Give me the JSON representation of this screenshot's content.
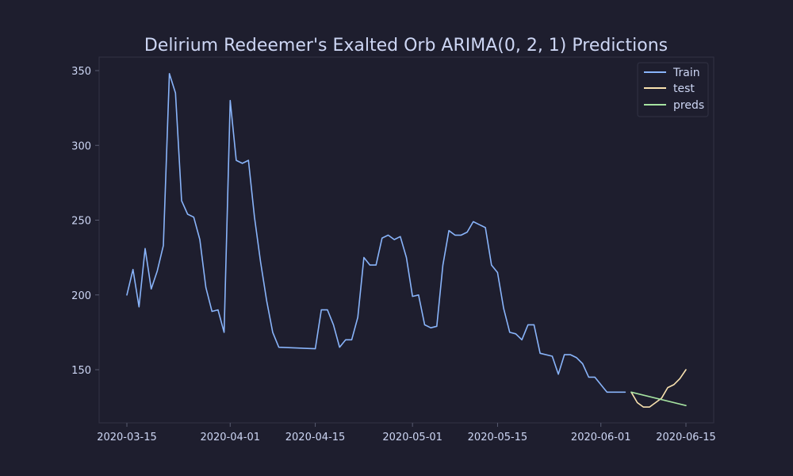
{
  "chart_data": {
    "type": "line",
    "title": "Delirium Redeemer's Exalted Orb ARIMA(0, 2, 1) Predictions",
    "xlabel": "",
    "ylabel": "",
    "xlim": [
      "2020-03-10",
      "2020-06-15"
    ],
    "ylim": [
      115,
      360
    ],
    "x_ticks": [
      "2020-03-15",
      "2020-04-01",
      "2020-04-15",
      "2020-05-01",
      "2020-05-15",
      "2020-06-01",
      "2020-06-15"
    ],
    "y_ticks": [
      150,
      200,
      250,
      300,
      350
    ],
    "grid": false,
    "legend_position": "top-right",
    "colors": {
      "background": "#1e1e2e",
      "axis": "#313244",
      "text": "#cdd6f4"
    },
    "series": [
      {
        "name": "Train",
        "color": "#89b4fa",
        "points": [
          [
            "2020-03-15",
            200
          ],
          [
            "2020-03-16",
            217
          ],
          [
            "2020-03-17",
            192
          ],
          [
            "2020-03-18",
            231
          ],
          [
            "2020-03-19",
            204
          ],
          [
            "2020-03-20",
            216
          ],
          [
            "2020-03-21",
            233
          ],
          [
            "2020-03-22",
            348
          ],
          [
            "2020-03-23",
            335
          ],
          [
            "2020-03-24",
            263
          ],
          [
            "2020-03-25",
            254
          ],
          [
            "2020-03-26",
            252
          ],
          [
            "2020-03-27",
            237
          ],
          [
            "2020-03-28",
            205
          ],
          [
            "2020-03-29",
            189
          ],
          [
            "2020-03-30",
            190
          ],
          [
            "2020-03-31",
            175
          ],
          [
            "2020-04-01",
            330
          ],
          [
            "2020-04-02",
            290
          ],
          [
            "2020-04-03",
            288
          ],
          [
            "2020-04-04",
            290
          ],
          [
            "2020-04-05",
            252
          ],
          [
            "2020-04-06",
            222
          ],
          [
            "2020-04-07",
            196
          ],
          [
            "2020-04-08",
            175
          ],
          [
            "2020-04-09",
            165
          ],
          [
            "2020-04-15",
            164
          ],
          [
            "2020-04-16",
            190
          ],
          [
            "2020-04-17",
            190
          ],
          [
            "2020-04-18",
            180
          ],
          [
            "2020-04-19",
            165
          ],
          [
            "2020-04-20",
            170
          ],
          [
            "2020-04-21",
            170
          ],
          [
            "2020-04-22",
            185
          ],
          [
            "2020-04-23",
            225
          ],
          [
            "2020-04-24",
            220
          ],
          [
            "2020-04-25",
            220
          ],
          [
            "2020-04-26",
            238
          ],
          [
            "2020-04-27",
            240
          ],
          [
            "2020-04-28",
            237
          ],
          [
            "2020-04-29",
            239
          ],
          [
            "2020-04-30",
            225
          ],
          [
            "2020-05-01",
            199
          ],
          [
            "2020-05-02",
            200
          ],
          [
            "2020-05-03",
            180
          ],
          [
            "2020-05-04",
            178
          ],
          [
            "2020-05-05",
            179
          ],
          [
            "2020-05-06",
            220
          ],
          [
            "2020-05-07",
            243
          ],
          [
            "2020-05-08",
            240
          ],
          [
            "2020-05-09",
            240
          ],
          [
            "2020-05-10",
            242
          ],
          [
            "2020-05-11",
            249
          ],
          [
            "2020-05-12",
            247
          ],
          [
            "2020-05-13",
            245
          ],
          [
            "2020-05-14",
            220
          ],
          [
            "2020-05-15",
            215
          ],
          [
            "2020-05-16",
            191
          ],
          [
            "2020-05-17",
            175
          ],
          [
            "2020-05-18",
            174
          ],
          [
            "2020-05-19",
            170
          ],
          [
            "2020-05-20",
            180
          ],
          [
            "2020-05-21",
            180
          ],
          [
            "2020-05-22",
            161
          ],
          [
            "2020-05-24",
            159
          ],
          [
            "2020-05-25",
            147
          ],
          [
            "2020-05-26",
            160
          ],
          [
            "2020-05-27",
            160
          ],
          [
            "2020-05-28",
            158
          ],
          [
            "2020-05-29",
            154
          ],
          [
            "2020-05-30",
            145
          ],
          [
            "2020-05-31",
            145
          ],
          [
            "2020-06-02",
            135
          ],
          [
            "2020-06-03",
            135
          ],
          [
            "2020-06-05",
            135
          ]
        ]
      },
      {
        "name": "test",
        "color": "#f9e2af",
        "points": [
          [
            "2020-06-06",
            135
          ],
          [
            "2020-06-07",
            128
          ],
          [
            "2020-06-08",
            125
          ],
          [
            "2020-06-09",
            125
          ],
          [
            "2020-06-10",
            128
          ],
          [
            "2020-06-11",
            131
          ],
          [
            "2020-06-12",
            138
          ],
          [
            "2020-06-13",
            140
          ],
          [
            "2020-06-14",
            144
          ],
          [
            "2020-06-15",
            150
          ]
        ]
      },
      {
        "name": "preds",
        "color": "#a6e3a1",
        "points": [
          [
            "2020-06-06",
            135
          ],
          [
            "2020-06-15",
            126
          ]
        ]
      }
    ]
  }
}
